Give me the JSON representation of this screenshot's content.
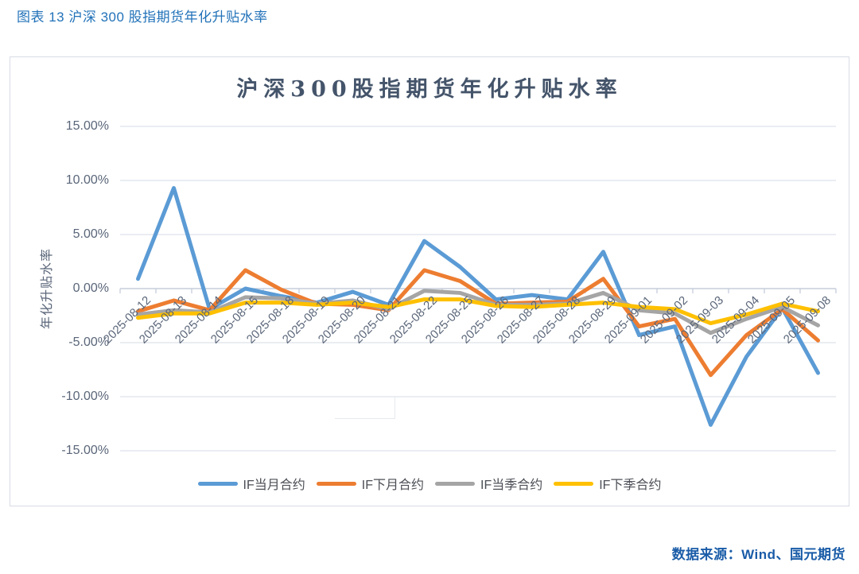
{
  "page": {
    "caption": "图表 13  沪深 300 股指期货年化升贴水率",
    "source": "数据来源：Wind、国元期货"
  },
  "theme": {
    "caption_color": "#2272B9",
    "title_color": "#44546A",
    "axis_label_color": "#5A6679",
    "source_color": "#1A5CA8",
    "gridline_color": "#DDE2EB",
    "axis_line_color": "#C5CDDB"
  },
  "chart_data": {
    "type": "line",
    "title": "沪深300股指期货年化升贴水率",
    "xlabel": "",
    "ylabel": "年化升贴水率",
    "unit": "percent",
    "ylim": [
      -15,
      15
    ],
    "ytick_percent": [
      15,
      10,
      5,
      0,
      -5,
      -10,
      -15
    ],
    "ytick_labels": [
      "15.00%",
      "10.00%",
      "5.00%",
      "0.00%",
      "-5.00%",
      "-10.00%",
      "-15.00%"
    ],
    "grid": true,
    "legend_position": "bottom",
    "categories": [
      "2025-08-12",
      "2025-08-13",
      "2025-08-14",
      "2025-08-15",
      "2025-08-18",
      "2025-08-19",
      "2025-08-20",
      "2025-08-21",
      "2025-08-22",
      "2025-08-25",
      "2025-08-26",
      "2025-08-27",
      "2025-08-28",
      "2025-08-29",
      "2025-09-01",
      "2025-09-02",
      "2025-09-03",
      "2025-09-04",
      "2025-09-05",
      "2025-09-08"
    ],
    "series": [
      {
        "name": "IF当月合约",
        "color": "#5B9BD5",
        "values": [
          0.9,
          9.3,
          -1.9,
          0.0,
          -0.7,
          -1.3,
          -0.3,
          -1.5,
          4.4,
          2.0,
          -1.0,
          -0.6,
          -1.0,
          3.4,
          -4.3,
          -3.5,
          -12.6,
          -6.3,
          -1.8,
          -7.8
        ]
      },
      {
        "name": "IF下月合约",
        "color": "#ED7D31",
        "values": [
          -2.1,
          -1.1,
          -2.0,
          1.7,
          -0.1,
          -1.4,
          -1.5,
          -2.0,
          1.7,
          0.7,
          -1.4,
          -1.3,
          -1.2,
          0.9,
          -3.5,
          -2.8,
          -8.0,
          -4.3,
          -1.9,
          -4.8
        ]
      },
      {
        "name": "IF当季合约",
        "color": "#A5A5A5",
        "values": [
          -2.4,
          -2.0,
          -2.2,
          -0.8,
          -0.9,
          -1.4,
          -1.1,
          -1.9,
          -0.2,
          -0.4,
          -1.5,
          -1.5,
          -1.4,
          -0.4,
          -2.0,
          -2.3,
          -4.1,
          -2.8,
          -1.7,
          -3.4
        ]
      },
      {
        "name": "IF下季合约",
        "color": "#FFC000",
        "values": [
          -2.7,
          -2.3,
          -2.3,
          -1.3,
          -1.3,
          -1.5,
          -1.3,
          -1.7,
          -1.0,
          -1.0,
          -1.6,
          -1.7,
          -1.5,
          -1.3,
          -1.7,
          -1.9,
          -3.2,
          -2.4,
          -1.4,
          -2.1
        ]
      }
    ]
  }
}
